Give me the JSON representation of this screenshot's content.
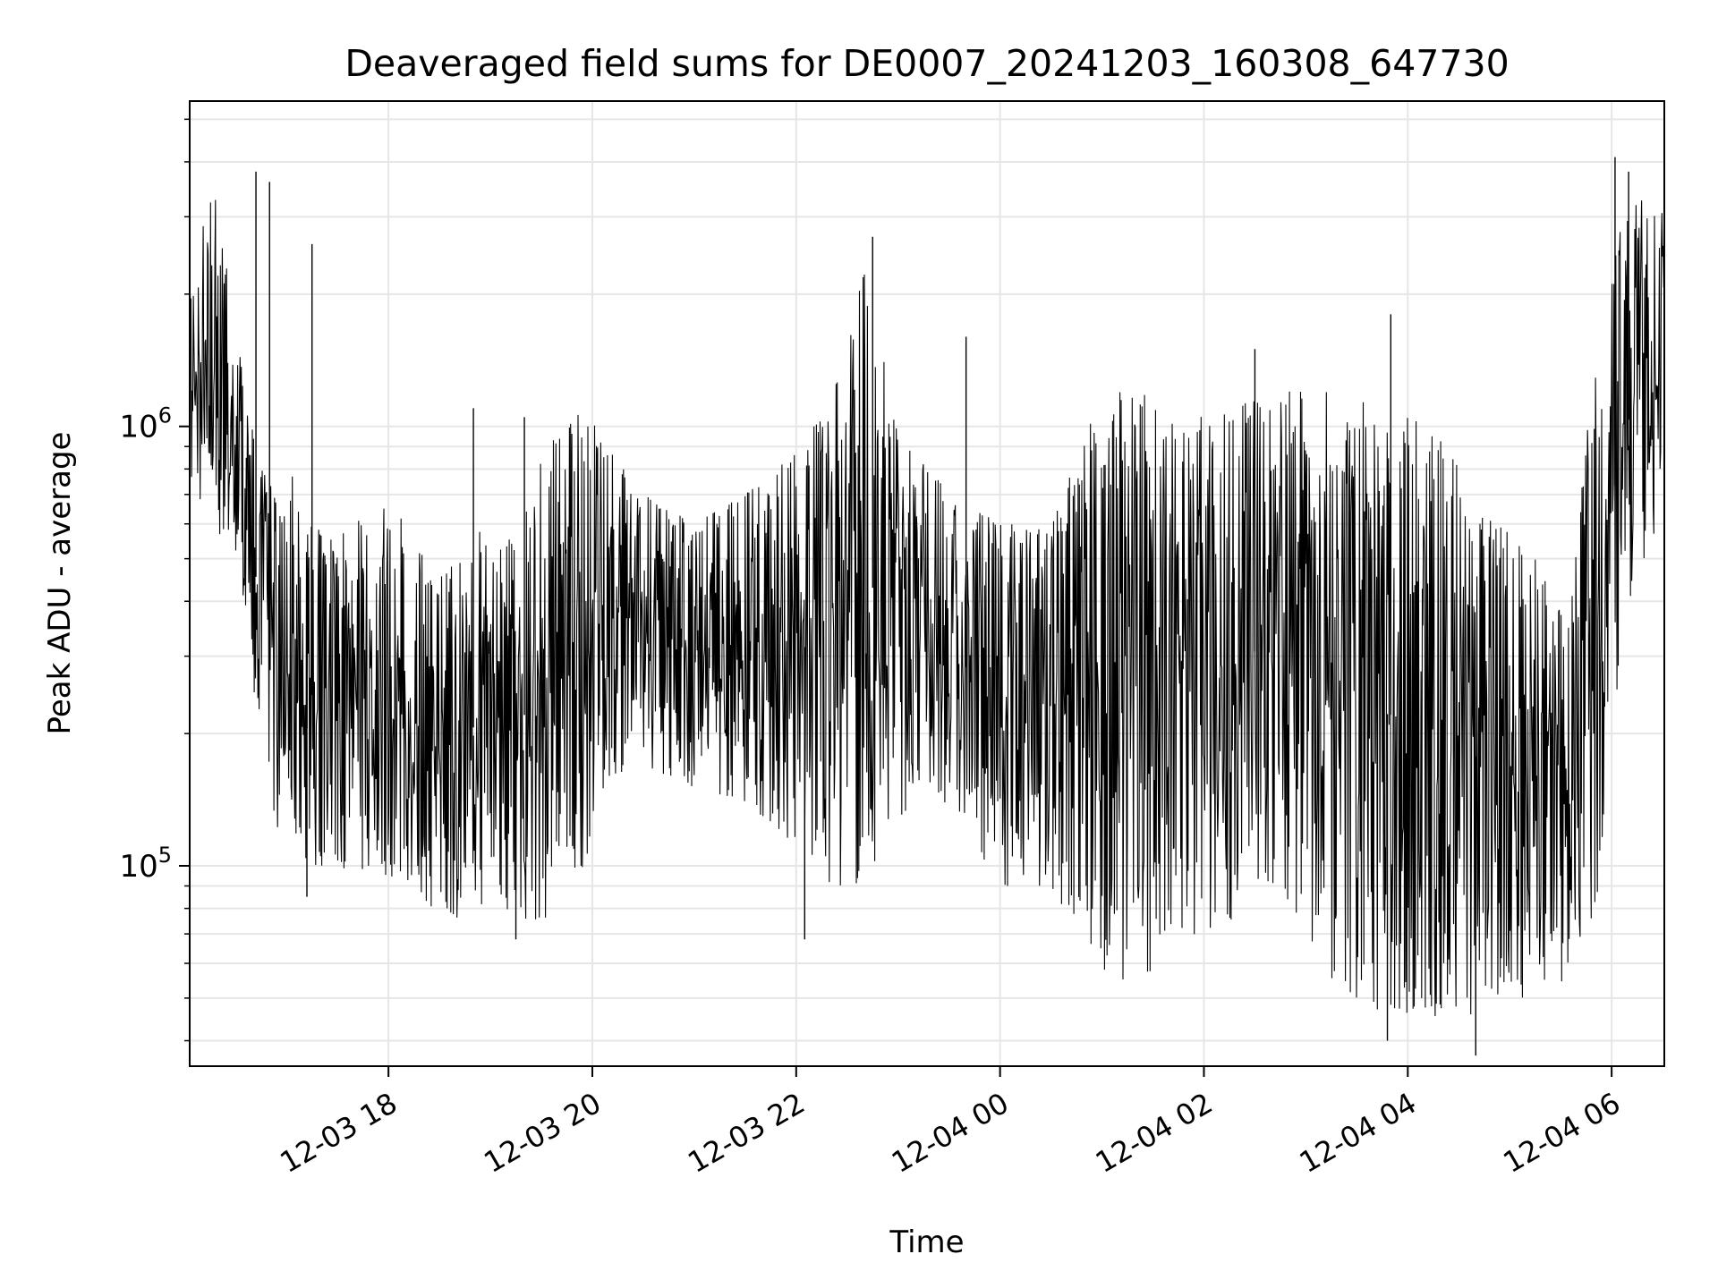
{
  "chart_data": {
    "type": "line",
    "title": "Deaveraged field sums for DE0007_20241203_160308_647730",
    "xlabel": "Time",
    "ylabel": "Peak ADU - average",
    "yscale": "log",
    "grid": true,
    "legend": "none",
    "xlim": [
      "2024-12-03 16:03",
      "2024-12-04 06:31"
    ],
    "ylim": [
      35000,
      5500000
    ],
    "xticks": [
      "12-03 18",
      "12-03 20",
      "12-03 22",
      "12-04 00",
      "12-04 02",
      "12-04 04",
      "12-04 06"
    ],
    "yticks": [
      {
        "label_base": "10",
        "label_exp": "5",
        "value": 100000
      },
      {
        "label_base": "10",
        "label_exp": "6",
        "value": 1000000
      }
    ],
    "line_color": "#000000",
    "series": [
      {
        "x": [
          "2024-12-03 16:03",
          "2024-12-03 16:15",
          "2024-12-03 16:25",
          "2024-12-03 16:35",
          "2024-12-03 16:45",
          "2024-12-03 16:55",
          "2024-12-03 17:05",
          "2024-12-03 17:15",
          "2024-12-03 17:30",
          "2024-12-03 17:45",
          "2024-12-03 18:00",
          "2024-12-03 18:15",
          "2024-12-03 18:25",
          "2024-12-03 18:45",
          "2024-12-03 19:00",
          "2024-12-03 19:15",
          "2024-12-03 19:30",
          "2024-12-03 19:45",
          "2024-12-03 19:55",
          "2024-12-03 20:10",
          "2024-12-03 20:30",
          "2024-12-03 21:00",
          "2024-12-03 21:30",
          "2024-12-03 22:00",
          "2024-12-03 22:20",
          "2024-12-03 22:40",
          "2024-12-03 23:00",
          "2024-12-03 23:30",
          "2024-12-04 00:00",
          "2024-12-04 00:30",
          "2024-12-04 01:00",
          "2024-12-04 01:20",
          "2024-12-04 01:45",
          "2024-12-04 02:15",
          "2024-12-04 02:45",
          "2024-12-04 03:15",
          "2024-12-04 03:45",
          "2024-12-04 04:15",
          "2024-12-04 04:45",
          "2024-12-04 05:15",
          "2024-12-04 05:35",
          "2024-12-04 05:50",
          "2024-12-04 06:05",
          "2024-12-04 06:20",
          "2024-12-04 06:31"
        ],
        "lo": [
          700000,
          650000,
          500000,
          400000,
          180000,
          120000,
          110000,
          100000,
          100000,
          95000,
          95000,
          90000,
          80000,
          75000,
          85000,
          75000,
          75000,
          80000,
          100000,
          160000,
          170000,
          150000,
          140000,
          110000,
          90000,
          90000,
          130000,
          140000,
          90000,
          90000,
          55000,
          55000,
          60000,
          75000,
          90000,
          55000,
          45000,
          45000,
          45000,
          52000,
          55000,
          60000,
          300000,
          500000,
          600000
        ],
        "hi": [
          2200000,
          3500000,
          3000000,
          1200000,
          800000,
          700000,
          800000,
          600000,
          550000,
          650000,
          650000,
          600000,
          450000,
          500000,
          650000,
          550000,
          900000,
          1000000,
          1100000,
          900000,
          700000,
          600000,
          700000,
          900000,
          1100000,
          2300000,
          1000000,
          700000,
          600000,
          600000,
          1200000,
          1200000,
          1100000,
          1100000,
          1200000,
          1200000,
          1100000,
          1000000,
          650000,
          500000,
          350000,
          1500000,
          2800000,
          3500000,
          3000000
        ],
        "extremes": [
          {
            "x": "2024-12-03 16:42",
            "y": 3800000
          },
          {
            "x": "2024-12-03 16:50",
            "y": 3600000
          },
          {
            "x": "2024-12-03 17:15",
            "y": 2600000
          },
          {
            "x": "2024-12-03 17:12",
            "y": 85000
          },
          {
            "x": "2024-12-03 18:50",
            "y": 1100000
          },
          {
            "x": "2024-12-03 19:15",
            "y": 68000
          },
          {
            "x": "2024-12-03 19:20",
            "y": 1050000
          },
          {
            "x": "2024-12-03 22:05",
            "y": 68000
          },
          {
            "x": "2024-12-03 22:45",
            "y": 2700000
          },
          {
            "x": "2024-12-03 23:40",
            "y": 1600000
          },
          {
            "x": "2024-12-04 02:30",
            "y": 1500000
          },
          {
            "x": "2024-12-04 03:50",
            "y": 1800000
          },
          {
            "x": "2024-12-04 03:48",
            "y": 40000
          },
          {
            "x": "2024-12-04 04:40",
            "y": 37000
          },
          {
            "x": "2024-12-04 06:02",
            "y": 4100000
          },
          {
            "x": "2024-12-04 06:10",
            "y": 3800000
          }
        ]
      }
    ]
  }
}
